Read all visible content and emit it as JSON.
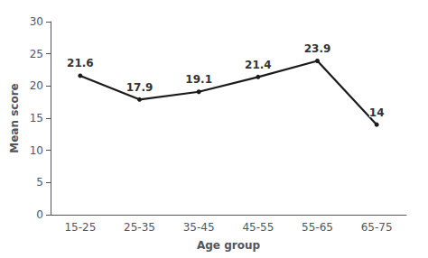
{
  "chart_data": {
    "type": "line",
    "categories": [
      "15-25",
      "25-35",
      "35-45",
      "45-55",
      "55-65",
      "65-75"
    ],
    "values": [
      21.6,
      17.9,
      19.1,
      21.4,
      23.9,
      14
    ],
    "xlabel": "Age group",
    "ylabel": "Mean score",
    "ylim": [
      0,
      30
    ],
    "yticks": [
      0,
      5,
      10,
      15,
      20,
      25,
      30
    ],
    "color": "#1a1a1a",
    "data_labels": true,
    "grid": false
  }
}
